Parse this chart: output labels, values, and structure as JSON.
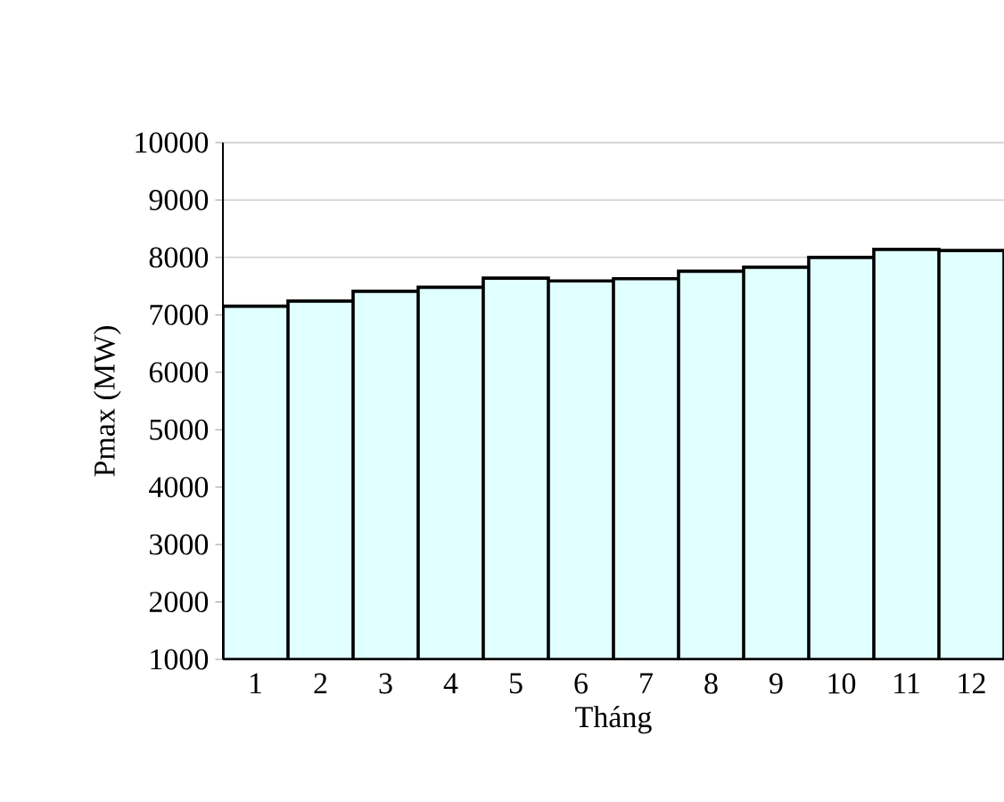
{
  "chart_data": {
    "type": "bar",
    "xlabel": "Tháng",
    "ylabel": "Pmax (MW)",
    "categories": [
      "1",
      "2",
      "3",
      "4",
      "5",
      "6",
      "7",
      "8",
      "9",
      "10",
      "11",
      "12"
    ],
    "values": [
      7150,
      7240,
      7410,
      7480,
      7640,
      7590,
      7630,
      7760,
      7830,
      8000,
      8140,
      8120
    ],
    "color": "#e0ffff",
    "ylim": [
      1000,
      10000
    ],
    "yticks": [
      1000,
      2000,
      3000,
      4000,
      5000,
      6000,
      7000,
      8000,
      9000,
      10000
    ],
    "grid": "y"
  }
}
